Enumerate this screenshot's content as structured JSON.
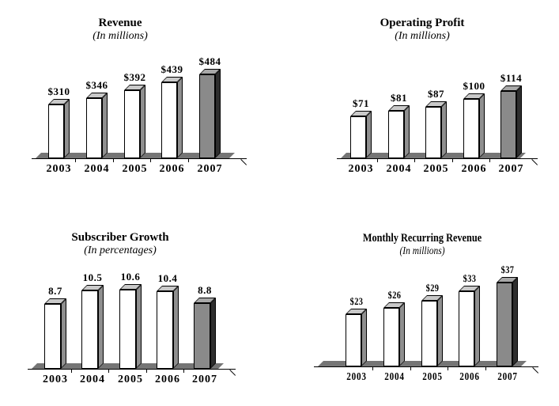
{
  "colors": {
    "background": "#ffffff",
    "text": "#000000",
    "outline": "#000000",
    "bar_front": "#ffffff",
    "bar_top": "#c9c9c9",
    "bar_side": "#8f8f8f",
    "highlight_front": "#8a8a8a",
    "highlight_top": "#a8a8a8",
    "highlight_side": "#2e2e2e",
    "floor": "#757575"
  },
  "chart_data": [
    {
      "type": "bar",
      "title": "Revenue",
      "subtitle": "(In millions)",
      "categories": [
        "2003",
        "2004",
        "2005",
        "2006",
        "2007"
      ],
      "values": [
        310,
        346,
        392,
        439,
        484
      ],
      "value_labels": [
        "$310",
        "$346",
        "$392",
        "$439",
        "$484"
      ],
      "highlight_index": 4,
      "xlabel": "",
      "ylabel": "",
      "ylim": [
        0,
        484
      ],
      "grid": false,
      "legend": "none"
    },
    {
      "type": "bar",
      "title": "Operating Profit",
      "subtitle": "(In millions)",
      "categories": [
        "2003",
        "2004",
        "2005",
        "2006",
        "2007"
      ],
      "values": [
        71,
        81,
        87,
        100,
        114
      ],
      "value_labels": [
        "$71",
        "$81",
        "$87",
        "$100",
        "$114"
      ],
      "highlight_index": 4,
      "xlabel": "",
      "ylabel": "",
      "ylim": [
        0,
        114
      ],
      "grid": false,
      "legend": "none"
    },
    {
      "type": "bar",
      "title": "Subscriber Growth",
      "subtitle": "(In percentages)",
      "categories": [
        "2003",
        "2004",
        "2005",
        "2006",
        "2007"
      ],
      "values": [
        8.7,
        10.5,
        10.6,
        10.4,
        8.8
      ],
      "value_labels": [
        "8.7",
        "10.5",
        "10.6",
        "10.4",
        "8.8"
      ],
      "highlight_index": 4,
      "xlabel": "",
      "ylabel": "",
      "ylim": [
        0,
        10.6
      ],
      "grid": false,
      "legend": "none"
    },
    {
      "type": "bar",
      "title": "Monthly Recurring Revenue",
      "subtitle": "(In millions)",
      "categories": [
        "2003",
        "2004",
        "2005",
        "2006",
        "2007"
      ],
      "values": [
        23,
        26,
        29,
        33,
        37
      ],
      "value_labels": [
        "$23",
        "$26",
        "$29",
        "$33",
        "$37"
      ],
      "highlight_index": 4,
      "xlabel": "",
      "ylabel": "",
      "ylim": [
        0,
        37
      ],
      "grid": false,
      "legend": "none"
    }
  ]
}
